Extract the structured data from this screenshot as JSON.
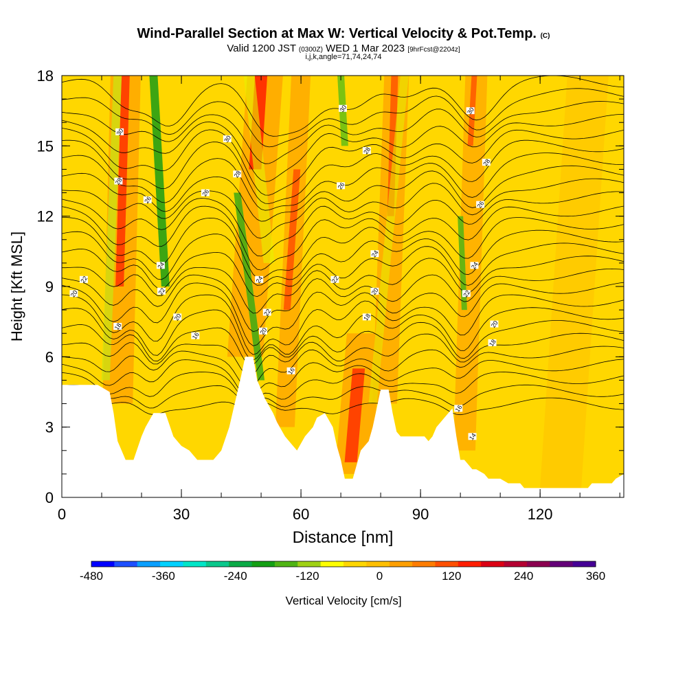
{
  "header": {
    "title_main": "Wind-Parallel Section at Max W: Vertical Velocity & Pot.Temp.",
    "title_tag": "(C)",
    "valid_prefix": "Valid 1200 JST",
    "valid_utc": "(0300Z)",
    "valid_date": "WED 1 Mar 2023",
    "forecast": "[9hrFcst@2204z]",
    "indices": "i,j,k,angle=71,74,24,74"
  },
  "colorbar": {
    "label": "Vertical Velocity [cm/s]",
    "ticks": [
      "-480",
      "-360",
      "-240",
      "-120",
      "0",
      "120",
      "240",
      "360"
    ],
    "colors": [
      "#0000ff",
      "#1e50ff",
      "#0aa0ff",
      "#00d2ff",
      "#00e6c8",
      "#0ac88c",
      "#0aaa46",
      "#14a014",
      "#50b414",
      "#a0d214",
      "#ffff00",
      "#ffd700",
      "#ffc000",
      "#ffa000",
      "#ff7d00",
      "#ff5000",
      "#ff1e00",
      "#dc0014",
      "#b40032",
      "#8c0050",
      "#640078",
      "#460096"
    ]
  },
  "chart_data": {
    "type": "heatmap",
    "title": "Wind-Parallel Section at Max W: Vertical Velocity & Pot.Temp. (C)",
    "subtitle": "Valid 1200 JST (0300Z) WED 1 Mar 2023 [9hrFcst@2204z]",
    "xlabel": "Distance [nm]",
    "ylabel": "Height [Kft MSL]",
    "xlim": [
      0,
      141
    ],
    "ylim": [
      0,
      18
    ],
    "x_ticks": [
      "0",
      "30",
      "60",
      "90",
      "120"
    ],
    "y_ticks": [
      "0",
      "3",
      "6",
      "9",
      "12",
      "15",
      "18"
    ],
    "colorbar_range_cms": [
      -480,
      360
    ],
    "updraft_max_x_nm": [
      15,
      50,
      57,
      73,
      83,
      103
    ],
    "downdraft_max_x_nm": [
      24,
      48,
      70,
      100
    ],
    "terrain_height_kft": [
      [
        0,
        4.8
      ],
      [
        3,
        4.8
      ],
      [
        6,
        4.8
      ],
      [
        9,
        4.8
      ],
      [
        12,
        4.5
      ],
      [
        13,
        3.6
      ],
      [
        14,
        2.4
      ],
      [
        15,
        2.0
      ],
      [
        16,
        1.6
      ],
      [
        18,
        1.6
      ],
      [
        20,
        2.6
      ],
      [
        21,
        3.0
      ],
      [
        23,
        3.6
      ],
      [
        26,
        3.6
      ],
      [
        28,
        2.6
      ],
      [
        30,
        2.2
      ],
      [
        32,
        2.0
      ],
      [
        34,
        1.6
      ],
      [
        38,
        1.6
      ],
      [
        40,
        2.0
      ],
      [
        42,
        3.0
      ],
      [
        45,
        5.2
      ],
      [
        46,
        6.0
      ],
      [
        48,
        6.0
      ],
      [
        49,
        5.0
      ],
      [
        51,
        4.2
      ],
      [
        53,
        3.6
      ],
      [
        54,
        3.2
      ],
      [
        56,
        2.6
      ],
      [
        58,
        2.2
      ],
      [
        59,
        2.0
      ],
      [
        61,
        2.6
      ],
      [
        63,
        3.0
      ],
      [
        64,
        3.4
      ],
      [
        66,
        3.6
      ],
      [
        68,
        3.0
      ],
      [
        69,
        2.2
      ],
      [
        70,
        1.6
      ],
      [
        71,
        0.8
      ],
      [
        73,
        0.8
      ],
      [
        75,
        2.0
      ],
      [
        77,
        2.4
      ],
      [
        78,
        3.0
      ],
      [
        80,
        4.6
      ],
      [
        82,
        4.6
      ],
      [
        83,
        3.6
      ],
      [
        84,
        2.8
      ],
      [
        85,
        2.6
      ],
      [
        88,
        2.6
      ],
      [
        91,
        2.6
      ],
      [
        92,
        2.4
      ],
      [
        93,
        2.6
      ],
      [
        94,
        3.0
      ],
      [
        96,
        3.4
      ],
      [
        98,
        3.8
      ],
      [
        99,
        2.6
      ],
      [
        100,
        1.6
      ],
      [
        101,
        1.6
      ],
      [
        102,
        1.4
      ],
      [
        103,
        1.2
      ],
      [
        104,
        1.2
      ],
      [
        106,
        1.0
      ],
      [
        107,
        0.8
      ],
      [
        110,
        0.8
      ],
      [
        112,
        0.6
      ],
      [
        115,
        0.6
      ],
      [
        116,
        0.4
      ],
      [
        131,
        0.4
      ],
      [
        132,
        0.4
      ],
      [
        133,
        0.6
      ],
      [
        138,
        0.6
      ],
      [
        139,
        0.8
      ],
      [
        141,
        1.0
      ]
    ],
    "contours": {
      "field": "Potential temperature (C)",
      "labels": [
        {
          "text": "30",
          "x": 14.5,
          "y": 15.6
        },
        {
          "text": "28",
          "x": 14.2,
          "y": 13.5
        },
        {
          "text": "26",
          "x": 21.5,
          "y": 12.7
        },
        {
          "text": "24",
          "x": 24.8,
          "y": 9.9
        },
        {
          "text": "22",
          "x": 25.0,
          "y": 8.8
        },
        {
          "text": "20",
          "x": 29.0,
          "y": 7.7
        },
        {
          "text": "18",
          "x": 14.0,
          "y": 7.3
        },
        {
          "text": "16",
          "x": 33.5,
          "y": 6.9
        },
        {
          "text": "22",
          "x": 5.5,
          "y": 9.3
        },
        {
          "text": "20",
          "x": 3.0,
          "y": 8.7
        },
        {
          "text": "30",
          "x": 41.5,
          "y": 15.3
        },
        {
          "text": "28",
          "x": 44.0,
          "y": 13.8
        },
        {
          "text": "26",
          "x": 36.0,
          "y": 13.0
        },
        {
          "text": "24",
          "x": 49.5,
          "y": 9.3
        },
        {
          "text": "22",
          "x": 51.5,
          "y": 7.9
        },
        {
          "text": "20",
          "x": 50.5,
          "y": 7.1
        },
        {
          "text": "16",
          "x": 57.5,
          "y": 5.4
        },
        {
          "text": "30",
          "x": 70.5,
          "y": 16.6
        },
        {
          "text": "28",
          "x": 76.5,
          "y": 14.8
        },
        {
          "text": "26",
          "x": 70.0,
          "y": 13.3
        },
        {
          "text": "24",
          "x": 78.5,
          "y": 10.4
        },
        {
          "text": "22",
          "x": 68.5,
          "y": 9.3
        },
        {
          "text": "20",
          "x": 78.5,
          "y": 8.8
        },
        {
          "text": "18",
          "x": 76.5,
          "y": 7.7
        },
        {
          "text": "30",
          "x": 102.5,
          "y": 16.5
        },
        {
          "text": "28",
          "x": 106.5,
          "y": 14.3
        },
        {
          "text": "26",
          "x": 105.0,
          "y": 12.5
        },
        {
          "text": "24",
          "x": 103.5,
          "y": 9.9
        },
        {
          "text": "22",
          "x": 101.5,
          "y": 8.7
        },
        {
          "text": "20",
          "x": 108.5,
          "y": 7.4
        },
        {
          "text": "18",
          "x": 108.0,
          "y": 6.6
        },
        {
          "text": "16",
          "x": 99.5,
          "y": 3.8
        },
        {
          "text": "14",
          "x": 103.0,
          "y": 2.6
        }
      ]
    }
  }
}
